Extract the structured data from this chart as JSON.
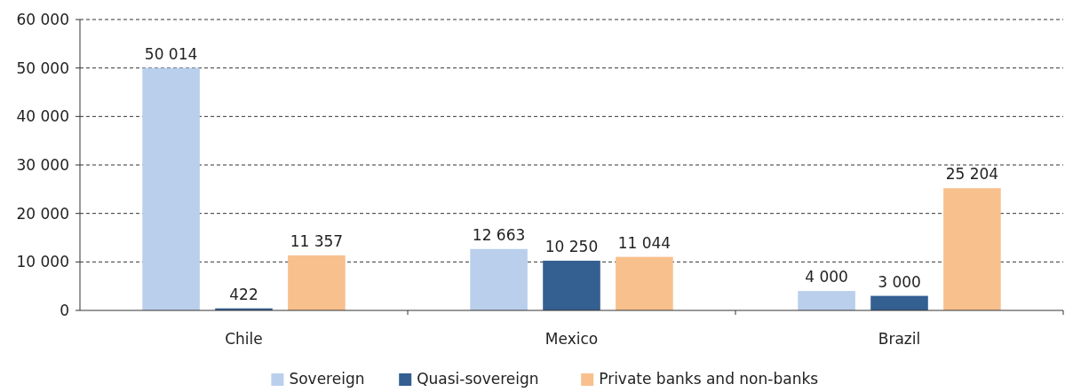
{
  "chart_data": {
    "type": "bar",
    "categories": [
      "Chile",
      "Mexico",
      "Brazil"
    ],
    "series": [
      {
        "name": "Sovereign",
        "color": "#b9cfec",
        "values": [
          50014,
          12663,
          4000
        ],
        "value_labels": [
          "50 014",
          "12 663",
          "4 000"
        ]
      },
      {
        "name": "Quasi-sovereign",
        "color": "#345f91",
        "values": [
          422,
          10250,
          3000
        ],
        "value_labels": [
          "422",
          "10 250",
          "3 000"
        ]
      },
      {
        "name": "Private banks and non-banks",
        "color": "#f8c08d",
        "values": [
          11357,
          11044,
          25204
        ],
        "value_labels": [
          "11 357",
          "11 044",
          "25 204"
        ]
      }
    ],
    "ylim": [
      0,
      60000
    ],
    "yticks": [
      0,
      {
        "value": 10000,
        "label": "10 000"
      },
      {
        "value": 20000,
        "label": "20 000"
      },
      {
        "value": 30000,
        "label": "30 000"
      },
      {
        "value": 40000,
        "label": "40 000"
      },
      {
        "value": 50000,
        "label": "50 000"
      },
      {
        "value": 60000,
        "label": "60 000"
      }
    ],
    "grid": "y",
    "legend": "bottom"
  }
}
